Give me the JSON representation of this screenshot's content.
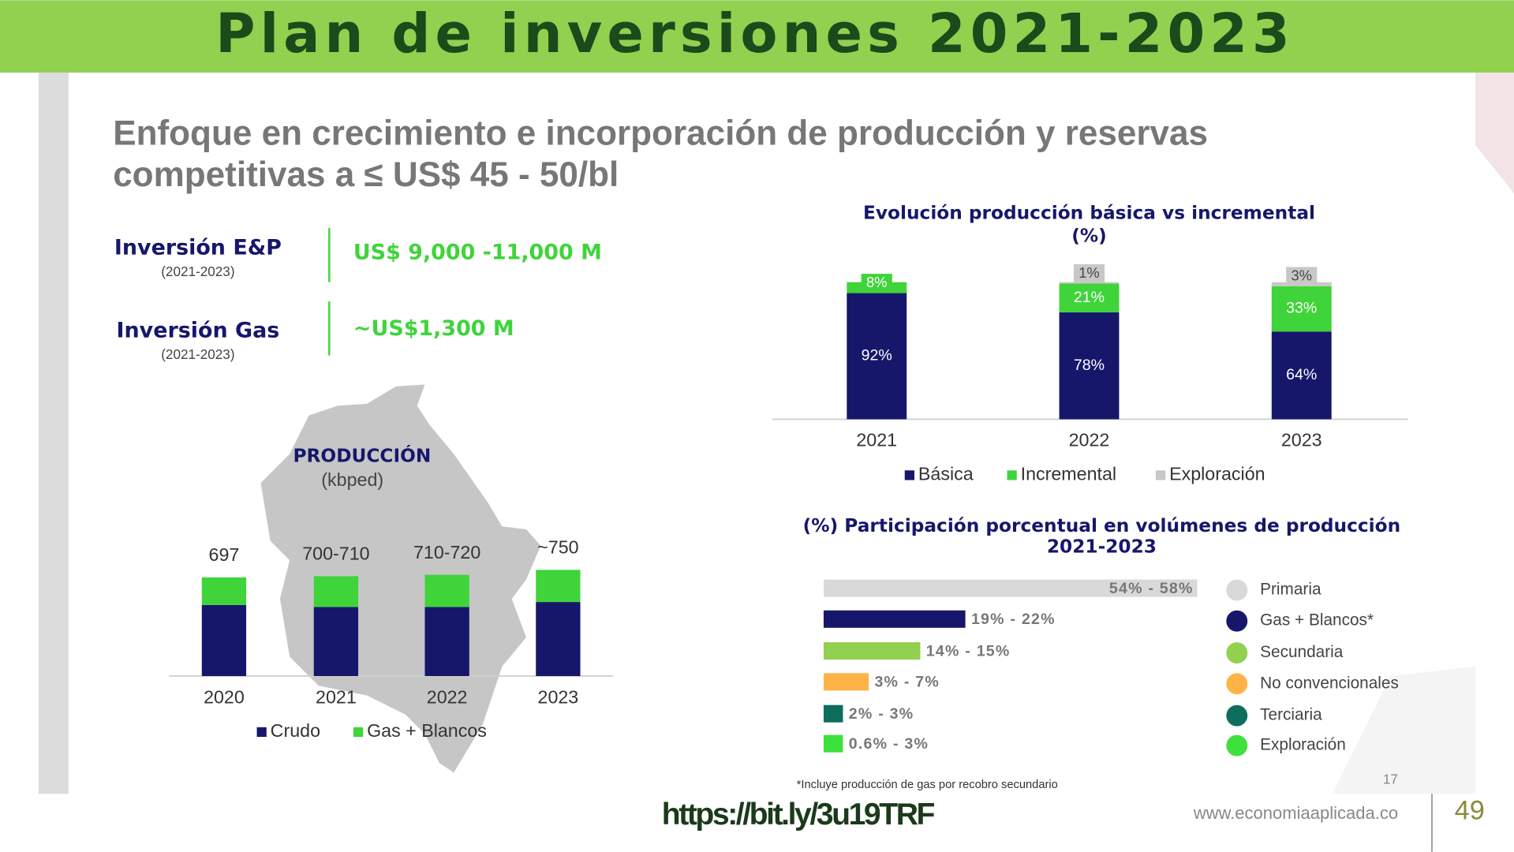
{
  "header": {
    "title": "Plan de inversiones 2021-2023"
  },
  "slide": {
    "subtitle_lines": [
      "Enfoque en crecimiento e incorporación de producción y reservas",
      "competitivas a ≤ US$ 45 - 50/bl"
    ],
    "investments": [
      {
        "label": "Inversión E&P",
        "period": "(2021-2023)",
        "amount": "US$ 9,000 -11,000 M"
      },
      {
        "label": "Inversión Gas",
        "period": "(2021-2023)",
        "amount": "~US$1,300 M"
      }
    ],
    "note": "*Incluye producción de gas por recobro secundario",
    "page_number": "17"
  },
  "chart_data": [
    {
      "type": "bar",
      "stacked": true,
      "title": "PRODUCCIÓN",
      "subtitle": "(kbped)",
      "categories": [
        "2020",
        "2021",
        "2022",
        "2023"
      ],
      "total_labels": [
        "697",
        "700-710",
        "710-720",
        "~750"
      ],
      "series": [
        {
          "name": "Crudo",
          "color": "#16176b",
          "values": [
            502,
            488,
            488,
            523
          ]
        },
        {
          "name": "Gas + Blancos",
          "color": "#3fd43a",
          "values": [
            195,
            217,
            227,
            227
          ]
        }
      ]
    },
    {
      "type": "bar",
      "stacked": true,
      "title": "Evolución producción básica vs incremental",
      "subtitle": "(%)",
      "categories": [
        "2021",
        "2022",
        "2023"
      ],
      "series": [
        {
          "name": "Básica",
          "color": "#16176b",
          "values": [
            92,
            78,
            64
          ],
          "value_labels": [
            "92%",
            "78%",
            "64%"
          ]
        },
        {
          "name": "Incremental",
          "color": "#3fd43a",
          "values": [
            8,
            21,
            33
          ],
          "value_labels": [
            "8%",
            "21%",
            "33%"
          ]
        },
        {
          "name": "Exploración",
          "color": "#c8c8c8",
          "values": [
            null,
            1,
            3
          ],
          "value_labels": [
            null,
            "1%",
            "3%"
          ]
        }
      ]
    },
    {
      "type": "hbar",
      "title": "(%) Participación porcentual en volúmenes de producción",
      "subtitle": "2021-2023",
      "categories": [
        "Primaria",
        "Gas + Blancos*",
        "Secundaria",
        "No convencionales",
        "Terciaria",
        "Exploración"
      ],
      "colors": [
        "#d9d9d9",
        "#16176b",
        "#92d050",
        "#ffb347",
        "#0e6e5e",
        "#3ee03e"
      ],
      "values": [
        58,
        22,
        15,
        7,
        3,
        3
      ],
      "value_labels": [
        "54% - 58%",
        "19% - 22%",
        "14% - 15%",
        "3% - 7%",
        "2% - 3%",
        "0.6% - 3%"
      ]
    }
  ],
  "footer": {
    "url": "https://bit.ly/3u19TRF",
    "site": "www.economiaaplicada.co",
    "page": "49"
  }
}
